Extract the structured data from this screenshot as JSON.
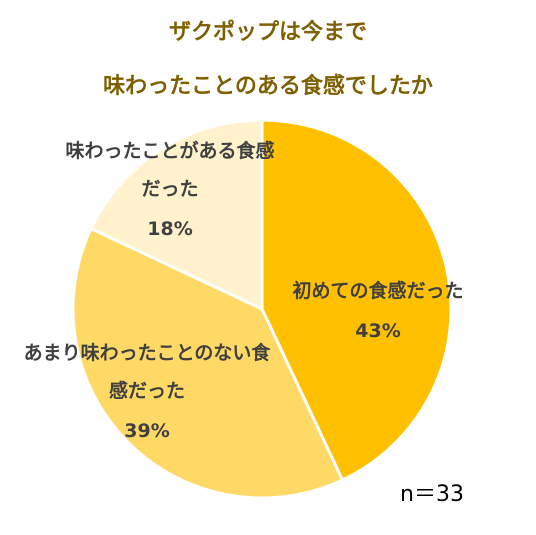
{
  "chart_data": {
    "type": "pie",
    "title": [
      "ザクポップは今まで",
      "味わったことのある食感でしたか"
    ],
    "categories": [
      "初めての食感だった",
      "あまり味わったことのない食感だった",
      "味わったことがある食感だった"
    ],
    "values": [
      43,
      39,
      18
    ],
    "value_labels": [
      "43%",
      "39%",
      "18%"
    ],
    "colors": [
      "#FFC000",
      "#FFD966",
      "#FFF2CC"
    ],
    "annotation": "n＝33"
  }
}
